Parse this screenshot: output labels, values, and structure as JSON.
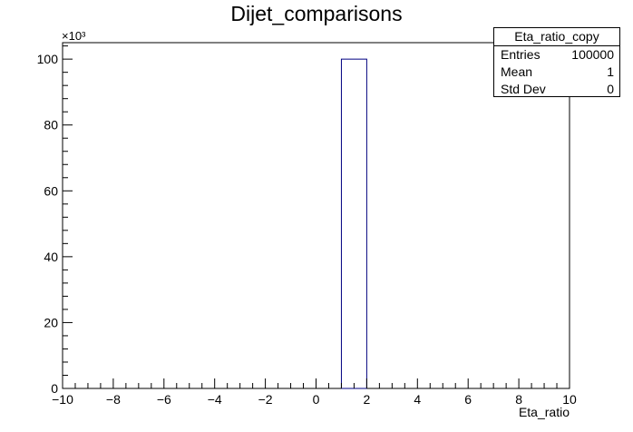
{
  "chart_data": {
    "type": "bar",
    "title": "Dijet_comparisons",
    "xlabel": "Eta_ratio",
    "ylabel": "",
    "xlim": [
      -10,
      10
    ],
    "ylim": [
      0,
      105000
    ],
    "y_multiplier_label": "×10³",
    "x_ticks": [
      -10,
      -8,
      -6,
      -4,
      -2,
      0,
      2,
      4,
      6,
      8,
      10
    ],
    "x_tick_labels": [
      "−10",
      "−8",
      "−6",
      "−4",
      "−2",
      "0",
      "2",
      "4",
      "6",
      "8",
      "10"
    ],
    "y_ticks": [
      0,
      20000,
      40000,
      60000,
      80000,
      100000
    ],
    "y_tick_labels": [
      "0",
      "20",
      "40",
      "60",
      "80",
      "100"
    ],
    "bins": [
      {
        "low": 1,
        "high": 2,
        "value": 100000
      }
    ],
    "series_color": "#000080"
  },
  "stats_box": {
    "name": "Eta_ratio_copy",
    "rows": [
      {
        "label": "Entries",
        "value": "100000"
      },
      {
        "label": "Mean",
        "value": "1"
      },
      {
        "label": "Std Dev",
        "value": "0"
      }
    ]
  }
}
